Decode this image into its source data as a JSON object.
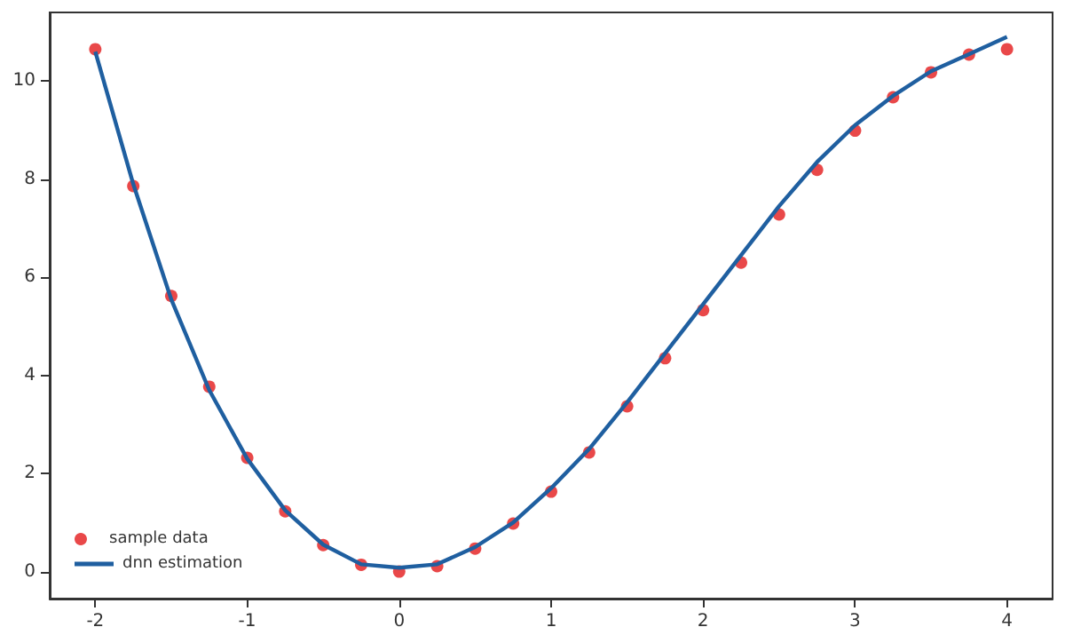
{
  "chart_data": {
    "type": "scatter",
    "xlim": [
      -2.3,
      4.3
    ],
    "ylim": [
      -0.55,
      11.4
    ],
    "xticks": [
      -2,
      -1,
      0,
      1,
      2,
      3,
      4
    ],
    "yticks": [
      0,
      2,
      4,
      6,
      8,
      10
    ],
    "grid": false,
    "legend": "bottom left",
    "series": [
      {
        "name": "sample data",
        "color": "#e41a1c",
        "marker": "circle",
        "x": [
          -2,
          -1.75,
          -1.5,
          -1.25,
          -1,
          -0.75,
          -0.5,
          -0.25,
          0,
          0.25,
          0.5,
          0.75,
          1,
          1.25,
          1.5,
          1.75,
          2,
          2.25,
          2.5,
          2.75,
          3,
          3.25,
          3.5,
          3.75,
          4
        ],
        "values": [
          10.65,
          7.86,
          5.62,
          3.77,
          2.32,
          1.23,
          0.54,
          0.14,
          0,
          0.11,
          0.47,
          0.98,
          1.63,
          2.43,
          3.37,
          4.35,
          5.33,
          6.3,
          7.28,
          8.19,
          8.99,
          9.67,
          10.18,
          10.54,
          10.65
        ]
      },
      {
        "name": "dnn estimation",
        "type": "line",
        "color": "#1f5fa0",
        "marker": "none",
        "line_style": "solid",
        "x": [
          -2,
          -1.75,
          -1.5,
          -1.25,
          -1,
          -0.75,
          -0.5,
          -0.25,
          0,
          0.25,
          0.5,
          0.75,
          1,
          1.25,
          1.5,
          1.75,
          2,
          2.25,
          2.5,
          2.75,
          3,
          3.25,
          3.5,
          3.75,
          4
        ],
        "values": [
          10.6,
          7.9,
          5.55,
          3.7,
          2.3,
          1.25,
          0.55,
          0.15,
          0.08,
          0.15,
          0.5,
          1.0,
          1.7,
          2.5,
          3.45,
          4.45,
          5.45,
          6.45,
          7.45,
          8.35,
          9.1,
          9.7,
          10.2,
          10.55,
          10.9
        ]
      }
    ]
  }
}
